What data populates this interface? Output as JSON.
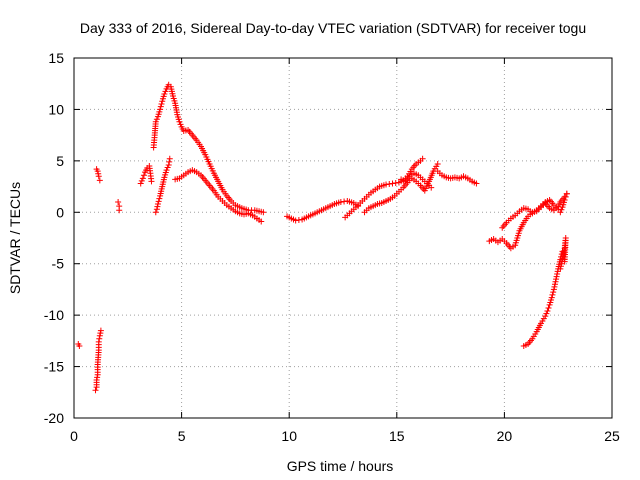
{
  "chart_data": {
    "type": "scatter",
    "title": "Day 333 of 2016, Sidereal Day-to-day VTEC variation (SDTVAR) for receiver togu",
    "xlabel": "GPS time / hours",
    "ylabel": "SDTVAR / TECUs",
    "xlim": [
      0,
      25
    ],
    "ylim": [
      -20,
      15
    ],
    "xticks": [
      0,
      5,
      10,
      15,
      20,
      25
    ],
    "yticks": [
      -20,
      -15,
      -10,
      -5,
      0,
      5,
      10,
      15
    ],
    "xtick_labels": [
      "0",
      "5",
      "10",
      "15",
      "20",
      "25"
    ],
    "ytick_labels": [
      "-20",
      "-15",
      "-10",
      "-5",
      "0",
      "5",
      "10",
      "15"
    ],
    "grid": true,
    "marker": "+",
    "series": [
      {
        "name": "SDTVAR",
        "color": "#ff0000",
        "tracks": [
          [
            [
              0.2,
              -12.8
            ],
            [
              0.25,
              -13.0
            ]
          ],
          [
            [
              1.0,
              -17.3
            ],
            [
              1.05,
              -17.0
            ],
            [
              1.05,
              -16.3
            ],
            [
              1.1,
              -15.8
            ],
            [
              1.1,
              -14.8
            ],
            [
              1.15,
              -13.4
            ],
            [
              1.15,
              -12.6
            ],
            [
              1.2,
              -12.0
            ],
            [
              1.25,
              -11.5
            ]
          ],
          [
            [
              1.05,
              4.2
            ],
            [
              1.1,
              4.0
            ],
            [
              1.15,
              3.5
            ],
            [
              1.2,
              3.1
            ]
          ],
          [
            [
              2.05,
              1.0
            ],
            [
              2.1,
              0.6
            ],
            [
              2.1,
              0.2
            ]
          ],
          [
            [
              3.1,
              2.8
            ],
            [
              3.2,
              3.3
            ],
            [
              3.3,
              3.9
            ],
            [
              3.4,
              4.3
            ],
            [
              3.5,
              4.5
            ],
            [
              3.55,
              3.8
            ],
            [
              3.6,
              3.0
            ]
          ],
          [
            [
              3.7,
              6.3
            ],
            [
              3.75,
              7.5
            ],
            [
              3.8,
              8.8
            ],
            [
              3.9,
              9.3
            ],
            [
              4.0,
              10.0
            ],
            [
              4.1,
              10.8
            ],
            [
              4.2,
              11.5
            ],
            [
              4.3,
              12.0
            ],
            [
              4.4,
              12.4
            ],
            [
              4.5,
              12.2
            ],
            [
              4.6,
              11.3
            ],
            [
              4.7,
              10.6
            ],
            [
              4.8,
              9.5
            ],
            [
              4.9,
              8.8
            ],
            [
              5.0,
              8.3
            ],
            [
              5.1,
              7.9
            ],
            [
              5.3,
              8.0
            ],
            [
              5.5,
              7.5
            ],
            [
              5.7,
              7.0
            ],
            [
              5.9,
              6.4
            ],
            [
              6.1,
              5.6
            ],
            [
              6.3,
              4.7
            ],
            [
              6.5,
              3.8
            ],
            [
              6.7,
              3.0
            ],
            [
              6.9,
              2.2
            ],
            [
              7.1,
              1.6
            ],
            [
              7.3,
              1.1
            ],
            [
              7.5,
              0.7
            ],
            [
              7.8,
              0.4
            ],
            [
              8.1,
              0.2
            ],
            [
              8.4,
              0.2
            ],
            [
              8.6,
              0.1
            ],
            [
              8.8,
              0.0
            ]
          ],
          [
            [
              3.8,
              0.0
            ],
            [
              3.85,
              0.3
            ],
            [
              3.9,
              0.8
            ],
            [
              4.0,
              1.6
            ],
            [
              4.1,
              2.5
            ],
            [
              4.2,
              3.4
            ],
            [
              4.3,
              4.1
            ],
            [
              4.4,
              4.6
            ],
            [
              4.45,
              5.2
            ]
          ],
          [
            [
              4.7,
              3.2
            ],
            [
              4.9,
              3.3
            ],
            [
              5.1,
              3.6
            ],
            [
              5.3,
              3.9
            ],
            [
              5.5,
              4.1
            ],
            [
              5.7,
              3.9
            ],
            [
              5.9,
              3.6
            ],
            [
              6.1,
              3.1
            ],
            [
              6.3,
              2.6
            ],
            [
              6.5,
              2.1
            ],
            [
              6.7,
              1.5
            ],
            [
              6.9,
              1.1
            ],
            [
              7.1,
              0.7
            ],
            [
              7.3,
              0.4
            ],
            [
              7.5,
              0.1
            ],
            [
              7.7,
              -0.1
            ],
            [
              7.9,
              -0.2
            ],
            [
              8.1,
              -0.1
            ],
            [
              8.3,
              -0.3
            ],
            [
              8.5,
              -0.6
            ],
            [
              8.7,
              -0.9
            ]
          ],
          [
            [
              9.9,
              -0.4
            ],
            [
              10.1,
              -0.6
            ],
            [
              10.3,
              -0.8
            ],
            [
              10.6,
              -0.7
            ],
            [
              10.9,
              -0.4
            ],
            [
              11.2,
              -0.1
            ],
            [
              11.5,
              0.2
            ],
            [
              11.8,
              0.5
            ],
            [
              12.1,
              0.8
            ],
            [
              12.4,
              1.0
            ],
            [
              12.7,
              1.1
            ],
            [
              13.0,
              0.9
            ],
            [
              13.2,
              0.6
            ]
          ],
          [
            [
              12.6,
              -0.5
            ],
            [
              12.8,
              -0.1
            ],
            [
              13.0,
              0.3
            ],
            [
              13.2,
              0.7
            ],
            [
              13.4,
              1.1
            ],
            [
              13.6,
              1.5
            ],
            [
              13.8,
              1.9
            ],
            [
              14.0,
              2.2
            ],
            [
              14.2,
              2.5
            ],
            [
              14.5,
              2.7
            ],
            [
              14.8,
              2.8
            ],
            [
              15.1,
              2.9
            ],
            [
              15.3,
              3.1
            ],
            [
              15.5,
              3.5
            ],
            [
              15.7,
              4.2
            ],
            [
              15.9,
              4.7
            ],
            [
              16.1,
              5.0
            ],
            [
              16.2,
              5.2
            ]
          ],
          [
            [
              13.5,
              0.0
            ],
            [
              13.7,
              0.4
            ],
            [
              13.9,
              0.6
            ],
            [
              14.1,
              0.8
            ],
            [
              14.3,
              0.9
            ],
            [
              14.5,
              1.1
            ],
            [
              14.7,
              1.3
            ],
            [
              14.9,
              1.6
            ],
            [
              15.1,
              2.0
            ],
            [
              15.3,
              2.4
            ],
            [
              15.5,
              2.9
            ],
            [
              15.7,
              3.3
            ],
            [
              15.9,
              3.0
            ],
            [
              16.1,
              2.6
            ],
            [
              16.3,
              2.1
            ],
            [
              16.5,
              3.0
            ],
            [
              16.7,
              4.0
            ],
            [
              16.9,
              4.7
            ]
          ],
          [
            [
              15.2,
              3.2
            ],
            [
              15.4,
              3.0
            ],
            [
              15.6,
              3.5
            ],
            [
              15.8,
              3.8
            ],
            [
              16.0,
              3.6
            ],
            [
              16.2,
              3.2
            ],
            [
              16.4,
              2.8
            ],
            [
              16.6,
              2.4
            ]
          ],
          [
            [
              16.9,
              4.0
            ],
            [
              17.1,
              3.6
            ],
            [
              17.3,
              3.4
            ],
            [
              17.5,
              3.3
            ],
            [
              17.7,
              3.4
            ],
            [
              17.9,
              3.3
            ],
            [
              18.1,
              3.5
            ],
            [
              18.3,
              3.3
            ],
            [
              18.5,
              3.0
            ],
            [
              18.7,
              2.8
            ]
          ],
          [
            [
              19.3,
              -2.8
            ],
            [
              19.5,
              -2.6
            ],
            [
              19.7,
              -2.9
            ],
            [
              19.9,
              -2.6
            ],
            [
              20.1,
              -3.0
            ],
            [
              20.3,
              -3.5
            ],
            [
              20.5,
              -3.2
            ],
            [
              20.6,
              -2.5
            ],
            [
              20.7,
              -1.8
            ],
            [
              20.9,
              -1.0
            ],
            [
              21.1,
              -0.4
            ],
            [
              21.3,
              0.0
            ],
            [
              21.5,
              0.1
            ],
            [
              21.7,
              0.5
            ],
            [
              21.9,
              0.9
            ],
            [
              22.1,
              0.4
            ],
            [
              22.3,
              0.2
            ],
            [
              22.5,
              0.6
            ],
            [
              22.6,
              1.0
            ],
            [
              22.8,
              1.5
            ],
            [
              22.9,
              1.8
            ]
          ],
          [
            [
              19.9,
              -1.5
            ],
            [
              20.1,
              -1.0
            ],
            [
              20.3,
              -0.6
            ],
            [
              20.5,
              -0.3
            ],
            [
              20.7,
              0.1
            ],
            [
              20.9,
              0.4
            ],
            [
              21.1,
              0.3
            ],
            [
              21.3,
              -0.1
            ],
            [
              21.5,
              0.2
            ],
            [
              21.7,
              0.6
            ],
            [
              21.9,
              1.0
            ],
            [
              22.1,
              1.2
            ],
            [
              22.3,
              0.7
            ],
            [
              22.5,
              0.3
            ],
            [
              22.6,
              0.0
            ],
            [
              22.7,
              0.5
            ],
            [
              22.8,
              1.2
            ],
            [
              22.9,
              1.8
            ]
          ],
          [
            [
              20.9,
              -13.0
            ],
            [
              21.1,
              -12.8
            ],
            [
              21.3,
              -12.3
            ],
            [
              21.5,
              -11.6
            ],
            [
              21.7,
              -10.8
            ],
            [
              21.9,
              -10.1
            ],
            [
              22.0,
              -9.6
            ],
            [
              22.1,
              -9.0
            ],
            [
              22.2,
              -8.3
            ],
            [
              22.3,
              -7.5
            ],
            [
              22.4,
              -6.5
            ],
            [
              22.5,
              -5.5
            ],
            [
              22.6,
              -4.6
            ],
            [
              22.7,
              -3.8
            ]
          ],
          [
            [
              22.6,
              -5.5
            ],
            [
              22.7,
              -4.5
            ],
            [
              22.8,
              -3.5
            ],
            [
              22.85,
              -2.5
            ],
            [
              22.8,
              -4.8
            ],
            [
              22.75,
              -3.9
            ]
          ]
        ]
      }
    ]
  }
}
